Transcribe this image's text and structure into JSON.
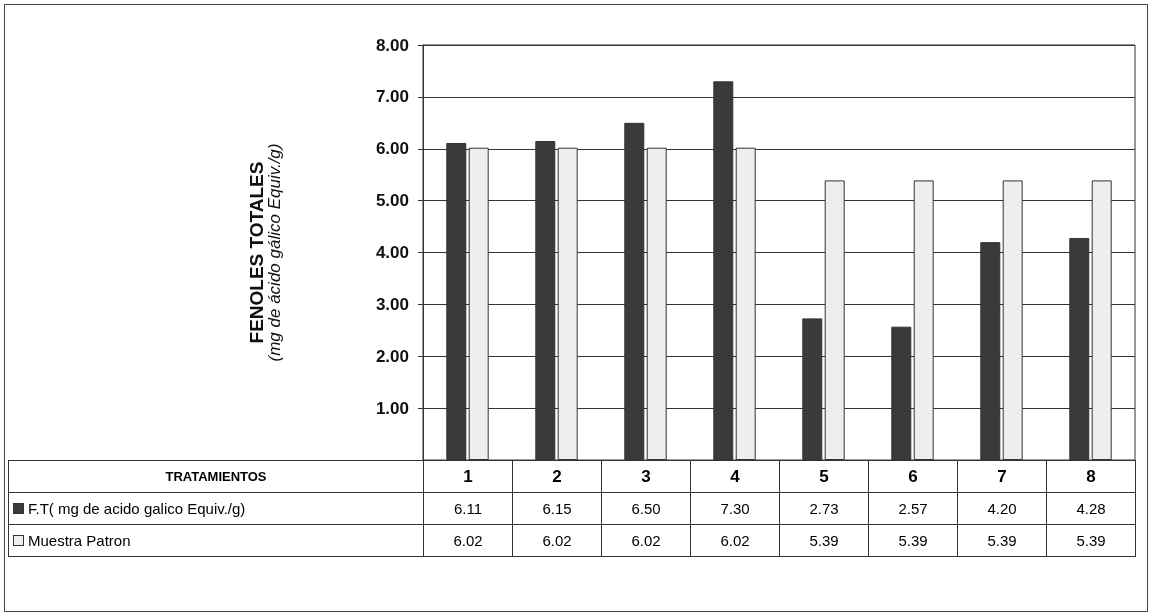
{
  "chart_data": {
    "type": "bar",
    "ylabel": "FENOLES TOTALES\n(mg de ácido gálico Equiv./g)",
    "annotations": [
      "TRATAMIENTOS"
    ],
    "categories": [
      "1",
      "2",
      "3",
      "4",
      "5",
      "6",
      "7",
      "8"
    ],
    "series": [
      {
        "name": "F.T( mg de acido galico Equiv./g)",
        "color": "#3a3a3a",
        "values": [
          6.11,
          6.15,
          6.5,
          7.3,
          2.73,
          2.57,
          4.2,
          4.28
        ],
        "value_labels": [
          "6.11",
          "6.15",
          "6.50",
          "7.30",
          "2.73",
          "2.57",
          "4.20",
          "4.28"
        ]
      },
      {
        "name": "Muestra Patron",
        "color": "#eeeeee",
        "values": [
          6.02,
          6.02,
          6.02,
          6.02,
          5.39,
          5.39,
          5.39,
          5.39
        ],
        "value_labels": [
          "6.02",
          "6.02",
          "6.02",
          "6.02",
          "5.39",
          "5.39",
          "5.39",
          "5.39"
        ]
      }
    ],
    "ylim": [
      0,
      8
    ],
    "yticks": [
      {
        "value": 0,
        "label": null
      },
      {
        "value": 1,
        "label": "1.00"
      },
      {
        "value": 2,
        "label": "2.00"
      },
      {
        "value": 3,
        "label": "3.00"
      },
      {
        "value": 4,
        "label": "4.00"
      },
      {
        "value": 5,
        "label": "5.00"
      },
      {
        "value": 6,
        "label": "6.00"
      },
      {
        "value": 7,
        "label": "7.00"
      },
      {
        "value": 8,
        "label": "8.00"
      }
    ],
    "grid": "y",
    "legend": "bottom left"
  }
}
